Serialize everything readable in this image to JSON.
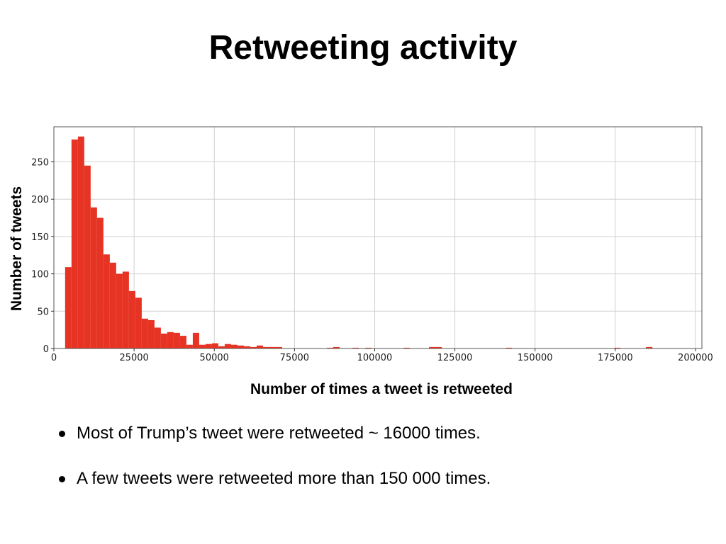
{
  "slide": {
    "title": "Retweeting activity",
    "bullets": [
      "Most of Trump’s tweet were retweeted ~ 16000 times.",
      "A few tweets were retweeted more than 150 000 times."
    ]
  },
  "colors": {
    "bar": "#e63323",
    "grid": "#d0d0d0",
    "frame": "#555555"
  },
  "chart_data": {
    "type": "bar",
    "subtype": "histogram",
    "title": "",
    "xlabel": "Number of times a tweet is retweeted",
    "ylabel": "Number of tweets",
    "xlim": [
      0,
      202000
    ],
    "ylim": [
      0,
      297
    ],
    "xticks": [
      0,
      25000,
      50000,
      75000,
      100000,
      125000,
      150000,
      175000,
      200000
    ],
    "yticks": [
      0,
      50,
      100,
      150,
      200,
      250
    ],
    "grid": true,
    "legend": "none",
    "bin_start": 3500,
    "bin_width": 1990,
    "counts": [
      109,
      280,
      284,
      245,
      189,
      175,
      126,
      115,
      100,
      103,
      77,
      68,
      40,
      38,
      28,
      20,
      22,
      21,
      17,
      5,
      21,
      5,
      6,
      7,
      3,
      6,
      5,
      4,
      3,
      2,
      4,
      2,
      2,
      2,
      0,
      0,
      0,
      0,
      0,
      0,
      0,
      1,
      2,
      0,
      0,
      1,
      0,
      1,
      0,
      0,
      0,
      0,
      0,
      1,
      0,
      0,
      0,
      2,
      2,
      0,
      0,
      0,
      0,
      0,
      0,
      0,
      0,
      0,
      0,
      1,
      0,
      0,
      0,
      0,
      0,
      0,
      0,
      0,
      0,
      0,
      0,
      0,
      0,
      0,
      0,
      0,
      1,
      0,
      0,
      0,
      0,
      2,
      0,
      0,
      0,
      0,
      0,
      0,
      0,
      0,
      0,
      0,
      0,
      0,
      0,
      0,
      0,
      0,
      0,
      0,
      0,
      0,
      0,
      0,
      0,
      0,
      0,
      0,
      0,
      0,
      0,
      0,
      0,
      0,
      3,
      0,
      0,
      0,
      0,
      0,
      0,
      0,
      0,
      0,
      0,
      0,
      0,
      0,
      0,
      0,
      0,
      0,
      0,
      0,
      0,
      0,
      0,
      0,
      0,
      0,
      0,
      0,
      0,
      0,
      0,
      0,
      0,
      0,
      0,
      0,
      0,
      0,
      0,
      0,
      0,
      0,
      0,
      0,
      0,
      0,
      0,
      0,
      0,
      0,
      0,
      0,
      0,
      0,
      0,
      0,
      0,
      0,
      0,
      0,
      0,
      0,
      0,
      0,
      0,
      0,
      0,
      0,
      0,
      0,
      0,
      0,
      0,
      0,
      0,
      0,
      0,
      0,
      0,
      0,
      0,
      0,
      0,
      0,
      1
    ]
  }
}
